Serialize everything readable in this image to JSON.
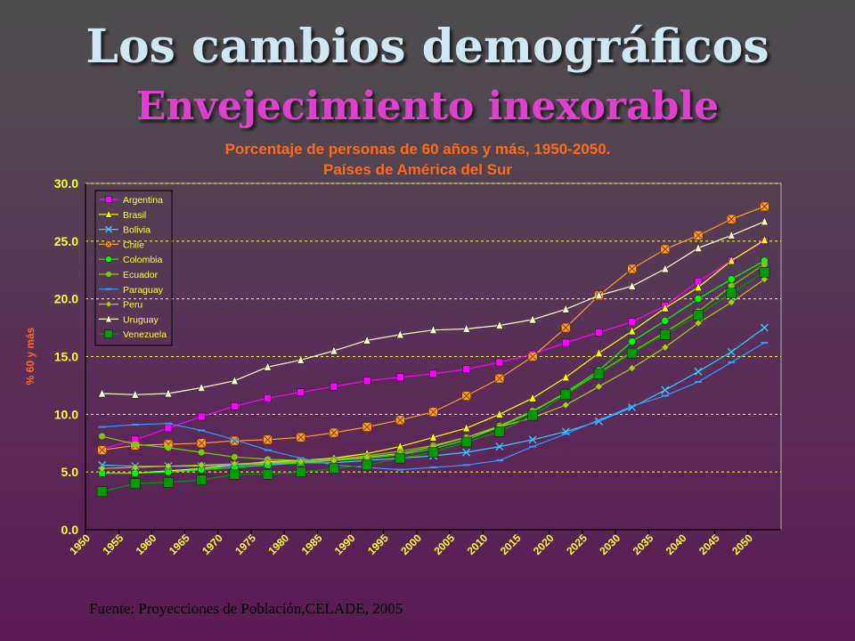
{
  "slide": {
    "title": "Los cambios demográficos",
    "subtitle": "Envejecimiento inexorable",
    "footer": "Fuente: Proyecciones de Población,CELADE, 2005"
  },
  "chart_data": {
    "type": "line",
    "title": "Porcentaje de personas de 60 años y más, 1950-2050.",
    "subtitle": "Países de América del Sur",
    "ylabel": "% 60 y más",
    "xlabel": "",
    "ylim": [
      0,
      30
    ],
    "yticks": [
      "0.0",
      "5.0",
      "10.0",
      "15.0",
      "20.0",
      "25.0",
      "30.0"
    ],
    "grid": "horizontal dashed",
    "legend_position": "top-left",
    "x": [
      1950,
      1955,
      1960,
      1965,
      1970,
      1975,
      1980,
      1985,
      1990,
      1995,
      2000,
      2005,
      2010,
      2015,
      2020,
      2025,
      2030,
      2035,
      2040,
      2045,
      2050
    ],
    "series": [
      {
        "name": "Argentina",
        "color": "#ff00ff",
        "marker": "square",
        "values": [
          7.0,
          7.8,
          8.8,
          9.8,
          10.7,
          11.4,
          11.9,
          12.4,
          12.9,
          13.2,
          13.5,
          13.9,
          14.5,
          15.2,
          16.2,
          17.1,
          18.0,
          19.4,
          21.5,
          23.3,
          25.0
        ]
      },
      {
        "name": "Brasil",
        "color": "#ffff00",
        "marker": "triangle",
        "values": [
          4.9,
          4.9,
          5.1,
          5.3,
          5.6,
          5.9,
          6.0,
          6.2,
          6.6,
          7.2,
          8.0,
          8.8,
          10.0,
          11.4,
          13.2,
          15.3,
          17.2,
          19.2,
          21.0,
          23.3,
          25.1
        ]
      },
      {
        "name": "Bolivia",
        "color": "#33ccff",
        "marker": "x",
        "values": [
          5.6,
          5.5,
          5.5,
          5.5,
          5.6,
          5.7,
          5.8,
          5.8,
          6.0,
          6.2,
          6.4,
          6.7,
          7.2,
          7.8,
          8.5,
          9.4,
          10.6,
          12.1,
          13.7,
          15.4,
          17.5
        ]
      },
      {
        "name": "Chile",
        "color": "#ff9933",
        "marker": "boxed-x",
        "values": [
          6.9,
          7.3,
          7.4,
          7.5,
          7.7,
          7.8,
          8.0,
          8.4,
          8.9,
          9.5,
          10.2,
          11.6,
          13.1,
          15.0,
          17.5,
          20.3,
          22.6,
          24.3,
          25.5,
          26.9,
          28.0
        ]
      },
      {
        "name": "Colombia",
        "color": "#00ff00",
        "marker": "circle",
        "values": [
          4.9,
          4.9,
          5.0,
          5.2,
          5.4,
          5.6,
          5.8,
          6.0,
          6.2,
          6.5,
          7.0,
          7.8,
          8.9,
          10.2,
          11.9,
          13.8,
          16.3,
          18.1,
          20.0,
          21.7,
          23.3
        ]
      },
      {
        "name": "Ecuador",
        "color": "#7acc00",
        "marker": "dot",
        "values": [
          8.1,
          7.4,
          7.1,
          6.7,
          6.3,
          6.1,
          6.0,
          6.1,
          6.4,
          6.8,
          7.3,
          8.0,
          9.0,
          10.3,
          11.8,
          13.6,
          15.4,
          17.1,
          18.9,
          21.1,
          23.0
        ]
      },
      {
        "name": "Paraguay",
        "color": "#3399ff",
        "marker": "dash",
        "values": [
          8.9,
          9.1,
          9.2,
          8.6,
          7.8,
          6.9,
          6.2,
          5.6,
          5.4,
          5.2,
          5.4,
          5.6,
          6.0,
          7.2,
          8.3,
          9.5,
          10.7,
          11.6,
          12.8,
          14.5,
          16.2
        ]
      },
      {
        "name": "Peru",
        "color": "#aacc22",
        "marker": "diamond",
        "values": [
          5.3,
          5.4,
          5.5,
          5.6,
          5.7,
          5.8,
          5.9,
          6.0,
          6.3,
          6.6,
          7.2,
          8.0,
          8.9,
          9.7,
          10.8,
          12.4,
          14.0,
          15.8,
          17.9,
          19.7,
          21.7
        ]
      },
      {
        "name": "Uruguay",
        "color": "#ffffcc",
        "marker": "triangle",
        "values": [
          11.8,
          11.7,
          11.8,
          12.3,
          12.9,
          14.1,
          14.7,
          15.5,
          16.4,
          16.9,
          17.3,
          17.4,
          17.7,
          18.2,
          19.1,
          20.3,
          21.1,
          22.6,
          24.4,
          25.5,
          26.7
        ]
      },
      {
        "name": "Venezuela",
        "color": "#009900",
        "marker": "square",
        "values": [
          3.3,
          4.0,
          4.1,
          4.3,
          4.8,
          4.8,
          5.0,
          5.3,
          5.6,
          6.2,
          6.7,
          7.6,
          8.5,
          9.9,
          11.7,
          13.5,
          15.3,
          16.9,
          18.6,
          20.5,
          22.3
        ]
      }
    ]
  }
}
